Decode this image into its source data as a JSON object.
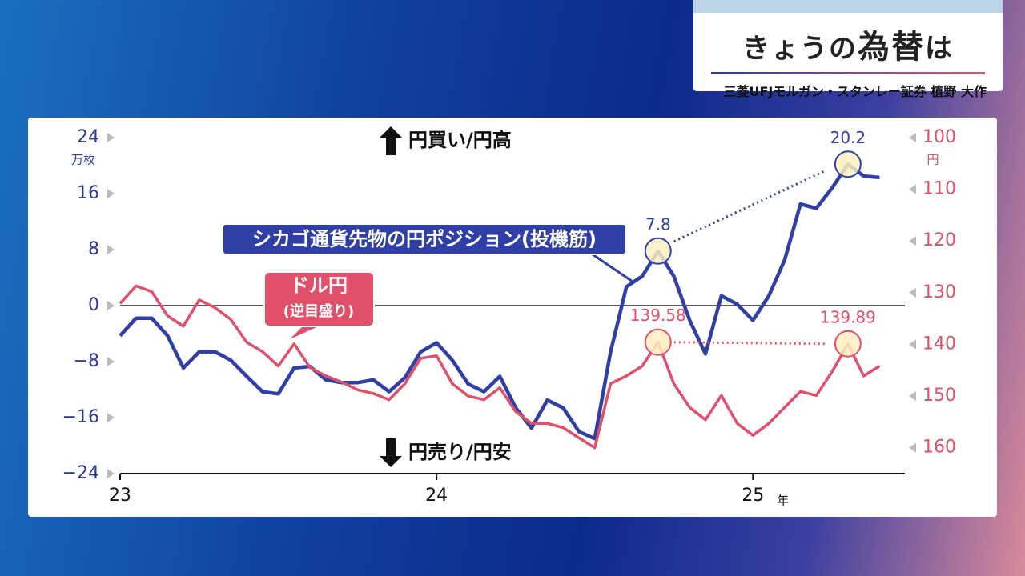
{
  "header": {
    "title": [
      "きょうの",
      "為替",
      "は"
    ],
    "speaker": "三菱UFJモルガン・スタンレー証券 植野 大作"
  },
  "chart_data": {
    "type": "line",
    "ylabel": "万枚",
    "y2label": "円",
    "xunit": "年",
    "up_note": "円買い/円高",
    "down_note": "円売り/円安",
    "x": [
      23.0,
      23.05,
      23.1,
      23.15,
      23.2,
      23.25,
      23.3,
      23.35,
      23.4,
      23.45,
      23.5,
      23.55,
      23.6,
      23.65,
      23.7,
      23.75,
      23.8,
      23.85,
      23.9,
      23.95,
      24.0,
      24.05,
      24.1,
      24.15,
      24.2,
      24.25,
      24.3,
      24.35,
      24.4,
      24.45,
      24.5,
      24.55,
      24.6,
      24.65,
      24.7,
      24.75,
      24.8,
      24.85,
      24.9,
      24.95,
      25.0,
      25.05,
      25.1,
      25.15,
      25.2,
      25.25,
      25.3,
      25.35,
      25.4
    ],
    "xlim": [
      23,
      25.48
    ],
    "xticks": [
      23,
      24,
      25
    ],
    "ylim": [
      -24,
      24
    ],
    "yticks": [
      {
        "value": -24,
        "label": "−24"
      },
      {
        "value": -16,
        "label": "−16"
      },
      {
        "value": -8,
        "label": "−8"
      },
      0,
      8,
      16,
      24
    ],
    "y2lim": [
      165,
      100
    ],
    "y2ticks": [
      100,
      110,
      120,
      130,
      140,
      150,
      160
    ],
    "zero_line": true,
    "series": [
      {
        "name": "シカゴ通貨先物の円ポジション(投機筋)",
        "color": "#2f3fa6",
        "highlight": [
          34,
          46
        ],
        "values": [
          -4.3,
          -1.8,
          -1.8,
          -4.3,
          -8.9,
          -6.6,
          -6.6,
          -7.8,
          -10.1,
          -12.3,
          -12.6,
          -8.9,
          -8.7,
          -10.6,
          -11,
          -11,
          -10.6,
          -12.3,
          -10.3,
          -6.6,
          -5.3,
          -7.8,
          -11.2,
          -12.3,
          -10.1,
          -14.6,
          -17.5,
          -13.5,
          -14.6,
          -18,
          -19,
          -6.6,
          2.7,
          4.2,
          7.8,
          4.2,
          -2.1,
          -6.9,
          1.4,
          0.2,
          -2.1,
          1.4,
          6.5,
          14.5,
          13.9,
          16.8,
          20.2,
          18.5,
          18.3
        ]
      },
      {
        "name": "ドル円",
        "note": "(逆目盛り)",
        "color": "#e1506b",
        "axis": "y2",
        "highlight": [
          34,
          46
        ],
        "values": [
          132.1,
          128.7,
          129.8,
          134.5,
          136.5,
          131.4,
          132.9,
          135.2,
          139.6,
          141.4,
          144.2,
          139.9,
          144.5,
          146.1,
          147.3,
          148.8,
          149.5,
          150.7,
          147.6,
          142.7,
          142.2,
          147.6,
          150,
          150.7,
          148.4,
          153,
          155.3,
          155.3,
          156.1,
          158.1,
          160,
          147.6,
          146.1,
          144.2,
          139.58,
          147.6,
          152.2,
          154.6,
          149.9,
          155.3,
          157.6,
          155.3,
          152.2,
          149.1,
          149.9,
          145.3,
          139.89,
          146.1,
          144.2
        ]
      }
    ]
  }
}
